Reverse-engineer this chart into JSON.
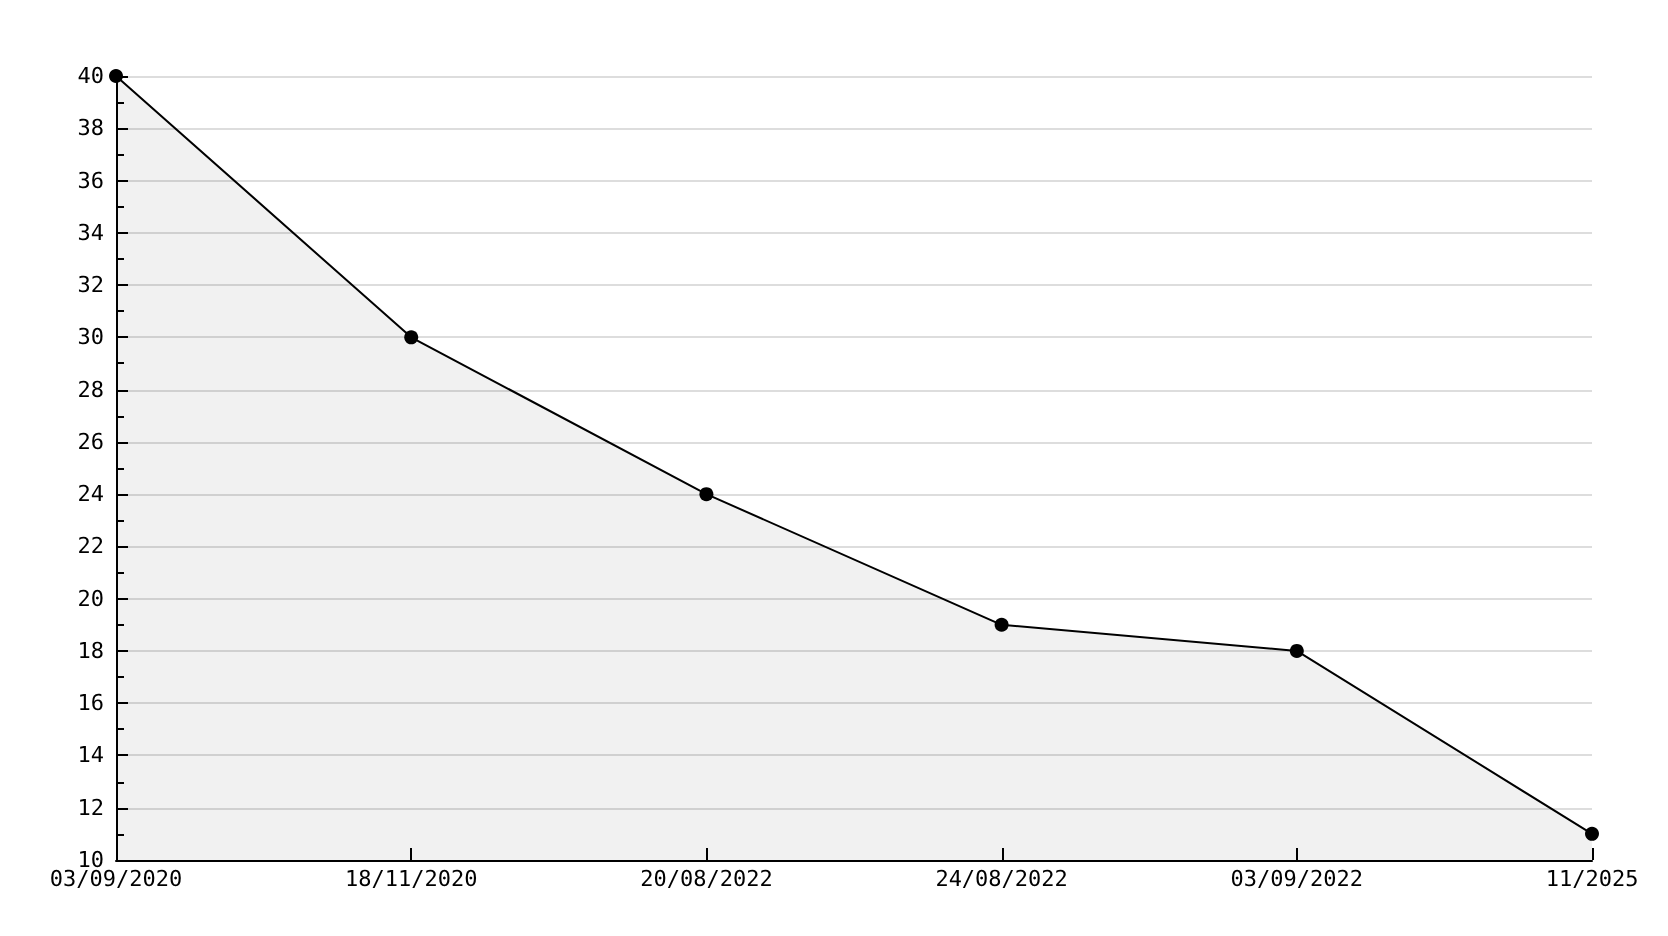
{
  "chart_data": {
    "type": "area",
    "categories": [
      "03/09/2020",
      "18/11/2020",
      "20/08/2022",
      "24/08/2022",
      "03/09/2022",
      "11/2025"
    ],
    "series": [
      {
        "color": "#000000",
        "values": [
          40,
          30,
          24,
          19,
          18,
          11
        ]
      }
    ],
    "ylim": [
      10,
      40
    ],
    "yticks": [
      10,
      12,
      14,
      16,
      18,
      20,
      22,
      24,
      26,
      28,
      30,
      32,
      34,
      36,
      38,
      40
    ],
    "grid": "y",
    "marker": "circle",
    "line_style": "solid"
  }
}
